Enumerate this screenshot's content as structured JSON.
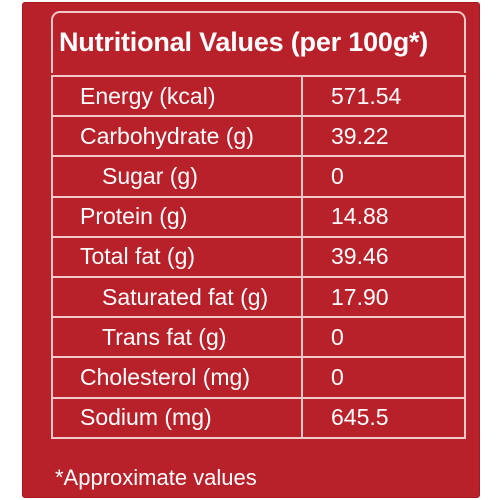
{
  "title": "Nutritional Values (per 100g*)",
  "rows": [
    {
      "label": "Energy (kcal)",
      "value": "571.54"
    },
    {
      "label": "Carbohydrate (g)",
      "value": "39.22"
    },
    {
      "label": "Sugar (g)",
      "value": "0"
    },
    {
      "label": "Protein (g)",
      "value": "14.88"
    },
    {
      "label": "Total fat (g)",
      "value": "39.46"
    },
    {
      "label": "Saturated fat (g)",
      "value": "17.90"
    },
    {
      "label": "Trans fat (g)",
      "value": "0"
    },
    {
      "label": "Cholesterol (mg)",
      "value": "0"
    },
    {
      "label": "Sodium (mg)",
      "value": "645.5"
    }
  ],
  "footnote": "*Approximate values",
  "colors": {
    "background": "#b8202a",
    "border": "#f2c8c8",
    "text": "#ffffff"
  }
}
